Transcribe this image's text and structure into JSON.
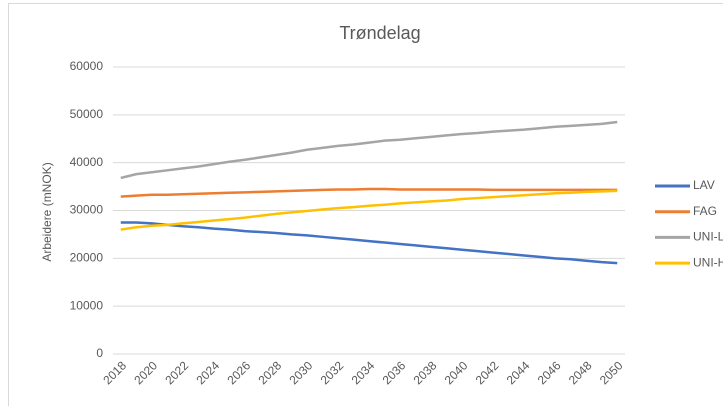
{
  "chart_data": {
    "type": "line",
    "title": "Trøndelag",
    "y_label": "Arbeidere (mNOK)",
    "x": [
      2018,
      2019,
      2020,
      2021,
      2022,
      2023,
      2024,
      2025,
      2026,
      2027,
      2028,
      2029,
      2030,
      2031,
      2032,
      2033,
      2034,
      2035,
      2036,
      2037,
      2038,
      2039,
      2040,
      2041,
      2042,
      2043,
      2044,
      2045,
      2046,
      2047,
      2048,
      2049,
      2050
    ],
    "xlim": [
      2017.5,
      2050.5
    ],
    "xticks": [
      2018,
      2020,
      2022,
      2024,
      2026,
      2028,
      2030,
      2032,
      2034,
      2036,
      2038,
      2040,
      2042,
      2044,
      2046,
      2048,
      2050
    ],
    "ylim": [
      0,
      60000
    ],
    "yticks": [
      0,
      10000,
      20000,
      30000,
      40000,
      50000,
      60000
    ],
    "grid": true,
    "legend": "right",
    "series": [
      {
        "name": "LAV",
        "color": "#4472c4",
        "values": [
          27500,
          27500,
          27300,
          27000,
          26700,
          26500,
          26200,
          26000,
          25700,
          25500,
          25300,
          25000,
          24800,
          24500,
          24200,
          23900,
          23600,
          23300,
          23000,
          22700,
          22400,
          22100,
          21800,
          21500,
          21200,
          20900,
          20600,
          20300,
          20000,
          19800,
          19500,
          19200,
          19000
        ]
      },
      {
        "name": "FAG",
        "color": "#ed7d31",
        "values": [
          32900,
          33100,
          33300,
          33300,
          33400,
          33500,
          33600,
          33700,
          33800,
          33900,
          34000,
          34100,
          34200,
          34300,
          34400,
          34400,
          34500,
          34500,
          34400,
          34400,
          34400,
          34400,
          34400,
          34400,
          34300,
          34300,
          34300,
          34300,
          34300,
          34300,
          34300,
          34300,
          34300
        ]
      },
      {
        "name": "UNI-L",
        "color": "#a5a5a5",
        "values": [
          36800,
          37600,
          38000,
          38400,
          38800,
          39200,
          39700,
          40200,
          40600,
          41100,
          41600,
          42100,
          42700,
          43100,
          43500,
          43800,
          44200,
          44600,
          44800,
          45100,
          45400,
          45700,
          46000,
          46200,
          46500,
          46700,
          46900,
          47200,
          47500,
          47700,
          47900,
          48100,
          48500
        ]
      },
      {
        "name": "UNI-H",
        "color": "#ffc000",
        "values": [
          26000,
          26500,
          26800,
          27000,
          27300,
          27600,
          27900,
          28200,
          28500,
          28900,
          29300,
          29600,
          29900,
          30200,
          30500,
          30700,
          31000,
          31200,
          31500,
          31700,
          31900,
          32100,
          32400,
          32600,
          32800,
          33000,
          33200,
          33400,
          33600,
          33700,
          33900,
          34000,
          34100
        ]
      }
    ]
  }
}
